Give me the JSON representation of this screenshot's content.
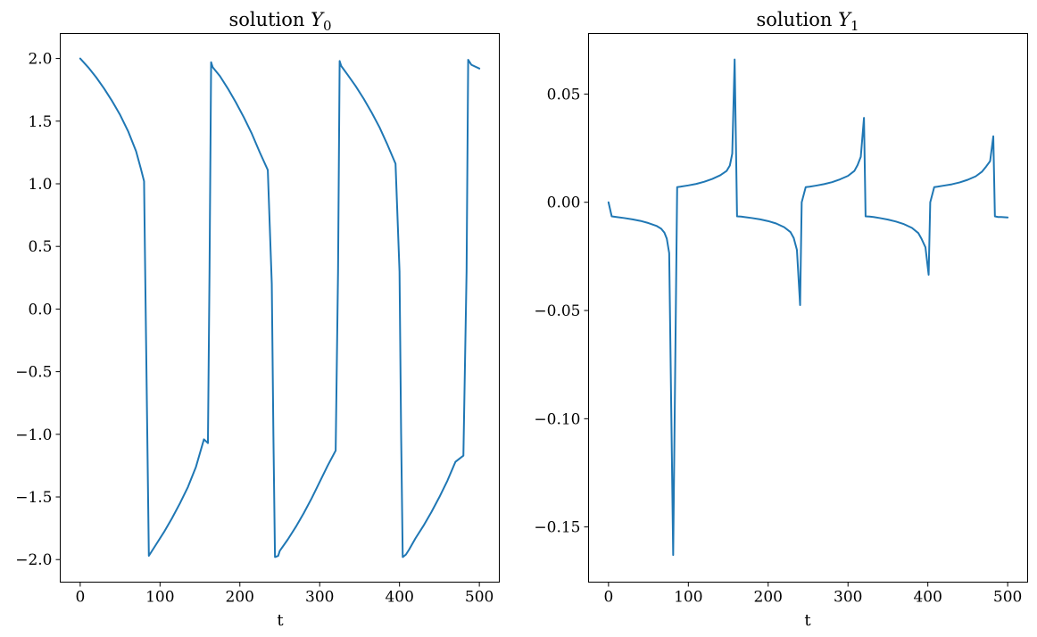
{
  "figure": {
    "background": "#ffffff"
  },
  "chart_data": [
    {
      "type": "line",
      "title_prefix": "solution ",
      "title_var": "Y",
      "title_sub": "0",
      "xlabel": "t",
      "ylabel": "",
      "xlim": [
        -25,
        525
      ],
      "ylim": [
        -2.18,
        2.2
      ],
      "xticks": [
        0,
        100,
        200,
        300,
        400,
        500
      ],
      "xtick_labels": [
        "0",
        "100",
        "200",
        "300",
        "400",
        "500"
      ],
      "yticks": [
        2.0,
        1.5,
        1.0,
        0.5,
        0.0,
        -0.5,
        -1.0,
        -1.5,
        -2.0
      ],
      "ytick_labels": [
        "2.0",
        "1.5",
        "1.0",
        "0.5",
        "0.0",
        "−0.5",
        "−1.0",
        "−1.5",
        "−2.0"
      ],
      "grid": false,
      "color": "#1f77b4",
      "series": [
        {
          "x": [
            0,
            10,
            20,
            30,
            40,
            50,
            60,
            70,
            76,
            80,
            81,
            86,
            95,
            105,
            115,
            125,
            135,
            145,
            155,
            160,
            162,
            164,
            166,
            175,
            185,
            195,
            205,
            215,
            225,
            235,
            240,
            242,
            244,
            248,
            250,
            260,
            270,
            280,
            290,
            300,
            310,
            320,
            323,
            325,
            327,
            335,
            345,
            355,
            365,
            375,
            385,
            395,
            400,
            402,
            404,
            408,
            412,
            420,
            430,
            440,
            450,
            460,
            470,
            480,
            484,
            486,
            488,
            490,
            500
          ],
          "y": [
            2.0,
            1.93,
            1.85,
            1.76,
            1.66,
            1.55,
            1.42,
            1.26,
            1.12,
            1.02,
            0.5,
            -1.97,
            -1.88,
            -1.78,
            -1.67,
            -1.55,
            -1.42,
            -1.26,
            -1.04,
            -1.07,
            0.3,
            1.97,
            1.93,
            1.86,
            1.76,
            1.65,
            1.53,
            1.4,
            1.25,
            1.11,
            0.2,
            -1.0,
            -1.98,
            -1.97,
            -1.93,
            -1.84,
            -1.74,
            -1.63,
            -1.51,
            -1.38,
            -1.25,
            -1.13,
            0.3,
            1.98,
            1.94,
            1.87,
            1.78,
            1.68,
            1.57,
            1.45,
            1.31,
            1.16,
            0.3,
            -1.0,
            -1.98,
            -1.96,
            -1.92,
            -1.83,
            -1.73,
            -1.62,
            -1.5,
            -1.37,
            -1.22,
            -1.17,
            0.3,
            1.99,
            1.97,
            1.95,
            1.92
          ]
        }
      ]
    },
    {
      "type": "line",
      "title_prefix": "solution ",
      "title_var": "Y",
      "title_sub": "1",
      "xlabel": "t",
      "ylabel": "",
      "xlim": [
        -25,
        525
      ],
      "ylim": [
        -0.1755,
        0.078
      ],
      "xticks": [
        0,
        100,
        200,
        300,
        400,
        500
      ],
      "xtick_labels": [
        "0",
        "100",
        "200",
        "300",
        "400",
        "500"
      ],
      "yticks": [
        0.05,
        0.0,
        -0.05,
        -0.1,
        -0.15
      ],
      "ytick_labels": [
        "0.05",
        "0.00",
        "−0.05",
        "−0.10",
        "−0.15"
      ],
      "grid": false,
      "color": "#1f77b4",
      "series": [
        {
          "x": [
            0,
            4,
            10,
            20,
            30,
            40,
            50,
            60,
            66,
            70,
            73,
            76,
            81,
            86,
            90,
            100,
            110,
            120,
            130,
            140,
            148,
            152,
            155,
            158,
            161,
            166,
            170,
            180,
            190,
            200,
            210,
            220,
            228,
            232,
            236,
            240,
            242,
            247,
            252,
            260,
            270,
            280,
            290,
            300,
            308,
            312,
            316,
            320,
            322,
            327,
            332,
            340,
            350,
            360,
            370,
            380,
            388,
            392,
            397,
            401,
            403,
            408,
            412,
            420,
            430,
            440,
            450,
            460,
            468,
            473,
            478,
            482,
            484,
            488,
            492,
            500
          ],
          "y": [
            0.0,
            -0.0065,
            -0.0068,
            -0.0073,
            -0.0079,
            -0.0086,
            -0.0096,
            -0.0109,
            -0.0122,
            -0.014,
            -0.0168,
            -0.0235,
            -0.163,
            0.007,
            0.0072,
            0.0078,
            0.0085,
            0.0095,
            0.0108,
            0.0125,
            0.0145,
            0.017,
            0.0225,
            0.066,
            -0.0065,
            -0.0066,
            -0.0068,
            -0.0073,
            -0.0079,
            -0.0087,
            -0.0098,
            -0.0115,
            -0.0138,
            -0.0165,
            -0.022,
            -0.0475,
            0.0,
            0.007,
            0.0072,
            0.0077,
            0.0084,
            0.0093,
            0.0106,
            0.0122,
            0.0145,
            0.0172,
            0.021,
            0.039,
            -0.0065,
            -0.0066,
            -0.0068,
            -0.0073,
            -0.008,
            -0.0089,
            -0.0101,
            -0.0118,
            -0.0142,
            -0.0168,
            -0.0208,
            -0.0335,
            0.0,
            0.007,
            0.0072,
            0.0077,
            0.0083,
            0.0092,
            0.0104,
            0.012,
            0.0142,
            0.0165,
            0.019,
            0.0305,
            -0.0065,
            -0.0068,
            -0.0068,
            -0.007
          ]
        }
      ]
    }
  ]
}
